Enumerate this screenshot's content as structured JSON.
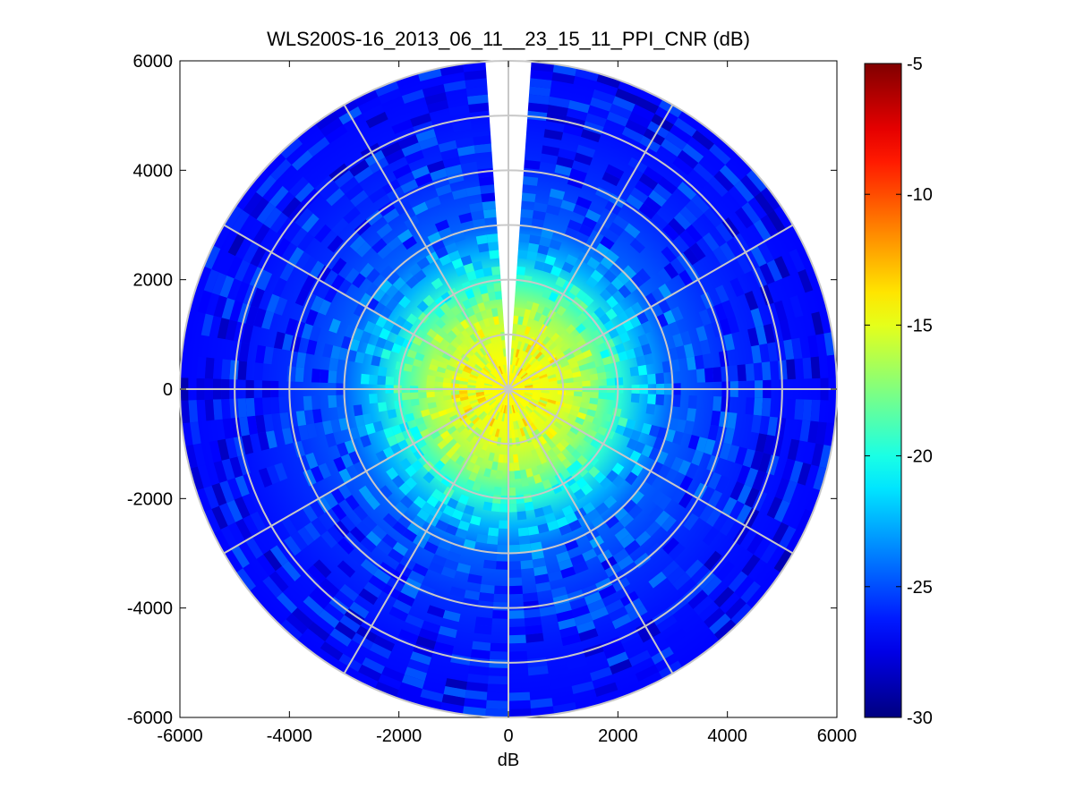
{
  "chart_data": {
    "type": "heatmap",
    "subtype": "polar-ppi",
    "title": "WLS200S-16_2013_06_11__23_15_11_PPI_CNR (dB)",
    "xlabel": "dB",
    "ylabel": "",
    "xlim": [
      -6000,
      6000
    ],
    "ylim": [
      -6000,
      6000
    ],
    "x_ticks": [
      "-6000",
      "-4000",
      "-2000",
      "0",
      "2000",
      "4000",
      "6000"
    ],
    "y_ticks": [
      "6000",
      "4000",
      "2000",
      "0",
      "-2000",
      "-4000",
      "-6000"
    ],
    "max_range": 6000,
    "range_rings": [
      1000,
      2000,
      3000,
      4000,
      5000,
      6000
    ],
    "spokes_deg": [
      0,
      30,
      60,
      90,
      120,
      150,
      180,
      210,
      240,
      270,
      300,
      330
    ],
    "missing_sector_deg": [
      -4,
      4
    ],
    "colormap": "jet",
    "colorbar": {
      "clim": [
        -30,
        -5
      ],
      "ticks": [
        "-5",
        "-10",
        "-15",
        "-20",
        "-25",
        "-30"
      ]
    },
    "radial_profile": [
      {
        "range": 0,
        "cnr": -14.2
      },
      {
        "range": 500,
        "cnr": -14.5
      },
      {
        "range": 1000,
        "cnr": -15.2
      },
      {
        "range": 1500,
        "cnr": -16.8
      },
      {
        "range": 2000,
        "cnr": -19.5
      },
      {
        "range": 2500,
        "cnr": -22.5
      },
      {
        "range": 3000,
        "cnr": -24.5
      },
      {
        "range": 4000,
        "cnr": -25.8
      },
      {
        "range": 5000,
        "cnr": -26.5
      },
      {
        "range": 6000,
        "cnr": -26.8
      }
    ],
    "grid": true,
    "legend": "colorbar-right"
  }
}
